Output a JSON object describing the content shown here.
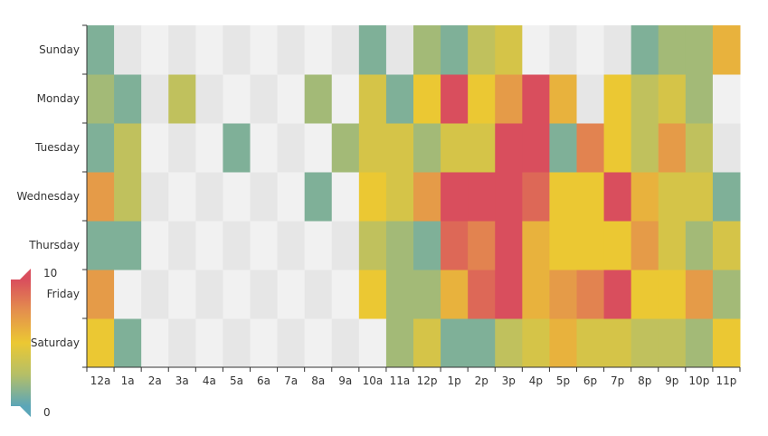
{
  "chart_data": {
    "type": "heatmap",
    "title": "",
    "xlabel": "",
    "ylabel": "",
    "x_categories": [
      "12a",
      "1a",
      "2a",
      "3a",
      "4a",
      "5a",
      "6a",
      "7a",
      "8a",
      "9a",
      "10a",
      "11a",
      "12p",
      "1p",
      "2p",
      "3p",
      "4p",
      "5p",
      "6p",
      "7p",
      "8p",
      "9p",
      "10p",
      "11p"
    ],
    "y_categories": [
      "Saturday",
      "Friday",
      "Thursday",
      "Wednesday",
      "Tuesday",
      "Monday",
      "Sunday"
    ],
    "values": [
      [
        5,
        1,
        0,
        0,
        0,
        0,
        0,
        0,
        0,
        0,
        0,
        2,
        4,
        1,
        1,
        3,
        4,
        6,
        4,
        4,
        3,
        3,
        2,
        5
      ],
      [
        7,
        0,
        0,
        0,
        0,
        0,
        0,
        0,
        0,
        0,
        5,
        2,
        2,
        6,
        9,
        11,
        6,
        7,
        8,
        12,
        5,
        5,
        7,
        2
      ],
      [
        1,
        1,
        0,
        0,
        0,
        0,
        0,
        0,
        0,
        0,
        3,
        2,
        1,
        9,
        8,
        10,
        6,
        5,
        5,
        5,
        7,
        4,
        2,
        4
      ],
      [
        7,
        3,
        0,
        0,
        0,
        0,
        0,
        0,
        1,
        0,
        5,
        4,
        7,
        14,
        13,
        12,
        9,
        5,
        5,
        10,
        6,
        4,
        4,
        1
      ],
      [
        1,
        3,
        0,
        0,
        0,
        1,
        0,
        0,
        0,
        2,
        4,
        4,
        2,
        4,
        4,
        14,
        12,
        1,
        8,
        5,
        3,
        7,
        3,
        0
      ],
      [
        2,
        1,
        0,
        3,
        0,
        0,
        0,
        0,
        2,
        0,
        4,
        1,
        5,
        10,
        5,
        7,
        11,
        6,
        0,
        5,
        3,
        4,
        2,
        0
      ],
      [
        1,
        0,
        0,
        0,
        0,
        0,
        0,
        0,
        0,
        0,
        1,
        0,
        2,
        1,
        3,
        4,
        0,
        0,
        0,
        0,
        1,
        2,
        2,
        6
      ]
    ],
    "visual_map": {
      "min": 0,
      "max": 10,
      "min_label": "0",
      "max_label": "10",
      "colors": [
        "#5ba6b8",
        "#b5bf67",
        "#ebc833",
        "#e4904d",
        "#d94e5d"
      ]
    },
    "missing_color": "#f2f2f2",
    "grid": false
  }
}
